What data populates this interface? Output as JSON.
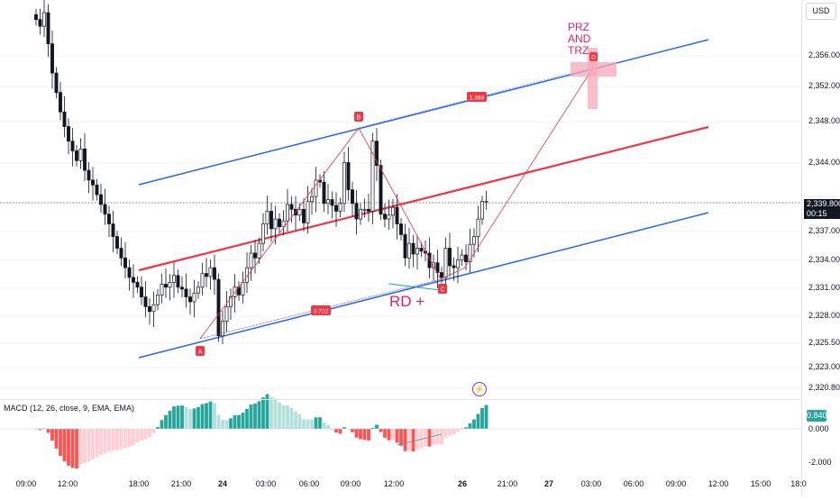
{
  "currency": "USD",
  "price_axis": {
    "ticks": [
      "2,356.000",
      "2,352.000",
      "2,348.000",
      "2,344.000",
      "2,337.000",
      "2,334.000",
      "2,331.000",
      "2,328.000",
      "2,325.500",
      "2,323.000",
      "2,320.800"
    ],
    "current_price": "2,339.800",
    "countdown": "00:15"
  },
  "time_axis": {
    "ticks": [
      "09:00",
      "12:00",
      "18:00",
      "21:00",
      "24",
      "03:00",
      "06:00",
      "09:00",
      "12:00",
      "26",
      "21:00",
      "27",
      "03:00",
      "06:00",
      "09:00",
      "12:00",
      "15:00",
      "18:0"
    ]
  },
  "annotations": {
    "prz_line1": "PRZ",
    "prz_line2": "AND",
    "prz_line3": "TRZ",
    "rd": "RD +",
    "point_a": "A",
    "point_b": "B",
    "point_c": "C",
    "point_d": "D",
    "ratio_upper": "1.388",
    "ratio_lower": "0.722"
  },
  "macd": {
    "label": "MACD (12, 26, close, 9, EMA, EMA)",
    "value": "0.840",
    "ticks": [
      "0.000",
      "-2.000"
    ]
  },
  "colors": {
    "up": "#089981",
    "down": "#f23645",
    "candle_body": "#131722",
    "channel": "#2962ff",
    "midline": "#f23645",
    "pattern": "#f23645",
    "prz_box": "#f7a8b8",
    "hist_up_strong": "#26a69a",
    "hist_up_weak": "#b2dfdb",
    "hist_down_strong": "#ff5252",
    "hist_down_weak": "#ffcdd2"
  },
  "chart_data": {
    "type": "candlestick",
    "y_range": [
      2319.5,
      2360.5
    ],
    "closes": [
      2358.5,
      2357.8,
      2359.2,
      2356.0,
      2353.0,
      2351.0,
      2349.0,
      2347.5,
      2346.0,
      2345.0,
      2344.0,
      2345.2,
      2343.0,
      2342.0,
      2341.5,
      2340.5,
      2339.5,
      2338.5,
      2337.5,
      2336.2,
      2335.0,
      2334.0,
      2333.0,
      2332.0,
      2331.5,
      2331.0,
      2330.0,
      2329.0,
      2328.5,
      2329.2,
      2330.2,
      2331.3,
      2331.0,
      2331.5,
      2332.2,
      2331.0,
      2330.8,
      2330.0,
      2329.5,
      2330.4,
      2331.0,
      2332.4,
      2332.1,
      2333.0,
      2331.8,
      2326.0,
      2327.5,
      2329.0,
      2330.0,
      2331.0,
      2330.2,
      2331.5,
      2333.0,
      2334.5,
      2334.0,
      2335.5,
      2337.5,
      2338.8,
      2337.0,
      2338.0,
      2337.2,
      2337.8,
      2339.5,
      2339.0,
      2338.4,
      2339.0,
      2337.6,
      2339.8,
      2340.3,
      2342.0,
      2341.8,
      2339.6,
      2340.0,
      2339.4,
      2338.8,
      2339.6,
      2343.8,
      2341.0,
      2339.6,
      2338.0,
      2339.0,
      2339.0,
      2338.8,
      2346.0,
      2343.5,
      2338.5,
      2338.0,
      2338.4,
      2339.2,
      2337.5,
      2336.4,
      2334.0,
      2335.5,
      2334.4,
      2335.0,
      2334.7,
      2334.5,
      2333.0,
      2333.5,
      2332.5,
      2332.0,
      2335.0,
      2333.2,
      2333.0,
      2333.8,
      2334.3,
      2333.6,
      2335.4,
      2336.2,
      2338.0,
      2339.8,
      2339.8
    ]
  }
}
